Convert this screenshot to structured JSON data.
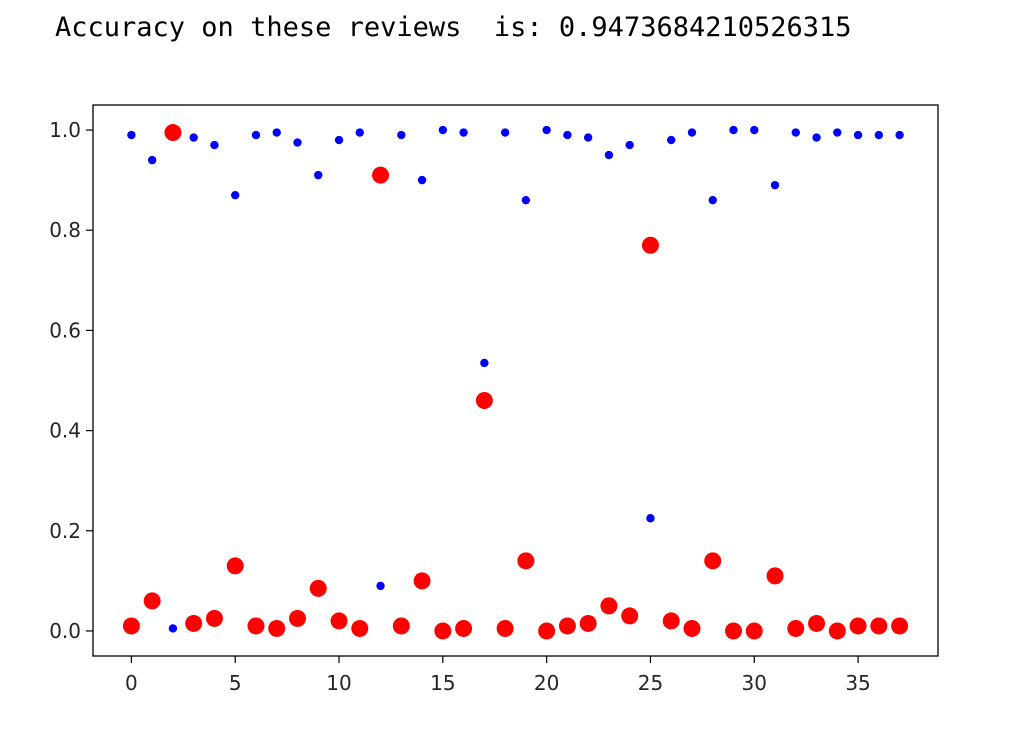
{
  "output": {
    "text": "Accuracy on these reviews  is: 0.9473684210526315"
  },
  "colors": {
    "series_a": "#0000ff",
    "series_b": "#ff0000"
  },
  "chart_data": {
    "type": "scatter",
    "title": "",
    "xlabel": "",
    "ylabel": "",
    "xlim": [
      -1.85,
      38.85
    ],
    "ylim": [
      -0.05,
      1.05
    ],
    "xticks": [
      0,
      5,
      10,
      15,
      20,
      25,
      30,
      35
    ],
    "yticks": [
      0.0,
      0.2,
      0.4,
      0.6,
      0.8,
      1.0
    ],
    "ytick_labels": [
      "0.0",
      "0.2",
      "0.4",
      "0.6",
      "0.8",
      "1.0"
    ],
    "grid": false,
    "series": [
      {
        "color": "#0000ff",
        "marker_size": "small",
        "x": [
          0,
          1,
          2,
          3,
          4,
          5,
          6,
          7,
          8,
          9,
          10,
          11,
          12,
          13,
          14,
          15,
          16,
          17,
          18,
          19,
          20,
          21,
          22,
          23,
          24,
          25,
          26,
          27,
          28,
          29,
          30,
          31,
          32,
          33,
          34,
          35,
          36,
          37
        ],
        "y": [
          0.99,
          0.94,
          0.005,
          0.985,
          0.97,
          0.87,
          0.99,
          0.995,
          0.975,
          0.91,
          0.98,
          0.995,
          0.09,
          0.99,
          0.9,
          1.0,
          0.995,
          0.535,
          0.995,
          0.86,
          1.0,
          0.99,
          0.985,
          0.95,
          0.97,
          0.225,
          0.98,
          0.995,
          0.86,
          1.0,
          1.0,
          0.89,
          0.995,
          0.985,
          0.995,
          0.99,
          0.99,
          0.99
        ]
      },
      {
        "color": "#ff0000",
        "marker_size": "large",
        "x": [
          0,
          1,
          2,
          3,
          4,
          5,
          6,
          7,
          8,
          9,
          10,
          11,
          12,
          13,
          14,
          15,
          16,
          17,
          18,
          19,
          20,
          21,
          22,
          23,
          24,
          25,
          26,
          27,
          28,
          29,
          30,
          31,
          32,
          33,
          34,
          35,
          36,
          37
        ],
        "y": [
          0.01,
          0.06,
          0.995,
          0.015,
          0.025,
          0.13,
          0.01,
          0.005,
          0.025,
          0.085,
          0.02,
          0.005,
          0.91,
          0.01,
          0.1,
          0.0,
          0.005,
          0.46,
          0.005,
          0.14,
          0.0,
          0.01,
          0.015,
          0.05,
          0.03,
          0.77,
          0.02,
          0.005,
          0.14,
          0.0,
          0.0,
          0.11,
          0.005,
          0.015,
          0.0,
          0.01,
          0.01,
          0.01
        ]
      }
    ]
  }
}
